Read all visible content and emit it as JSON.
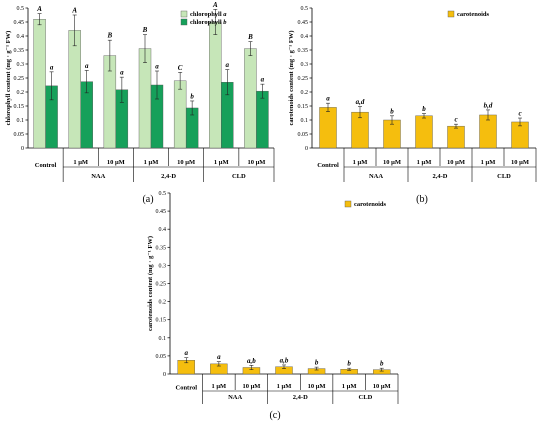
{
  "chart_data": [
    {
      "id": "a",
      "type": "bar",
      "panel_label": "(a)",
      "ylabel": "chlorophyll content (mg · g⁻¹ FW)",
      "ylim": [
        0,
        0.5
      ],
      "yticks": [
        "0",
        "0.05",
        "0.1",
        "0.15",
        "0.2",
        "0.25",
        "0.3",
        "0.35",
        "0.4",
        "0.45",
        "0.5"
      ],
      "legend_position": "top-right",
      "categories": [
        "Control",
        "1 μM",
        "10 μM",
        "1 μM",
        "10 μM",
        "1 μM",
        "10 μM"
      ],
      "groups": [
        {
          "label": "Control",
          "span": [
            0,
            0
          ]
        },
        {
          "label": "NAA",
          "span": [
            1,
            2
          ]
        },
        {
          "label": "2,4-D",
          "span": [
            3,
            4
          ]
        },
        {
          "label": "CLD",
          "span": [
            5,
            6
          ]
        }
      ],
      "series": [
        {
          "name": "chlorophyll a",
          "color": "#c6e6b8",
          "values": [
            0.46,
            0.42,
            0.33,
            0.355,
            0.24,
            0.45,
            0.355
          ],
          "errors": [
            0.02,
            0.055,
            0.055,
            0.05,
            0.03,
            0.045,
            0.025
          ],
          "letters": [
            "A",
            "A",
            "B",
            "B",
            "C",
            "A",
            "B"
          ]
        },
        {
          "name": "chlorophyll b",
          "color": "#16a05a",
          "values": [
            0.222,
            0.237,
            0.208,
            0.225,
            0.143,
            0.235,
            0.203
          ],
          "errors": [
            0.05,
            0.04,
            0.045,
            0.05,
            0.025,
            0.045,
            0.025
          ],
          "letters": [
            "a",
            "a",
            "a",
            "a",
            "b",
            "a",
            "a"
          ]
        }
      ]
    },
    {
      "id": "b",
      "type": "bar",
      "panel_label": "(b)",
      "ylabel": "carotenoids content (mg · g⁻¹ FW)",
      "ylim": [
        0,
        0.5
      ],
      "yticks": [
        "0",
        "0.05",
        "0.1",
        "0.15",
        "0.2",
        "0.25",
        "0.3",
        "0.35",
        "0.4",
        "0.45",
        "0.5"
      ],
      "legend_position": "top-right",
      "categories": [
        "Control",
        "1 μM",
        "10 μM",
        "1 μM",
        "10 μM",
        "1 μM",
        "10 μM"
      ],
      "groups": [
        {
          "label": "Control",
          "span": [
            0,
            0
          ]
        },
        {
          "label": "NAA",
          "span": [
            1,
            2
          ]
        },
        {
          "label": "2,4-D",
          "span": [
            3,
            4
          ]
        },
        {
          "label": "CLD",
          "span": [
            5,
            6
          ]
        }
      ],
      "series": [
        {
          "name": "carotenoids",
          "color": "#f5be0e",
          "values": [
            0.145,
            0.128,
            0.1,
            0.115,
            0.078,
            0.118,
            0.093
          ],
          "errors": [
            0.015,
            0.02,
            0.015,
            0.008,
            0.007,
            0.018,
            0.014
          ],
          "letters": [
            "a",
            "a,d",
            "b",
            "b",
            "c",
            "b,d",
            "c"
          ]
        }
      ]
    },
    {
      "id": "c",
      "type": "bar",
      "panel_label": "(c)",
      "ylabel": "carotenoids content (mg · g⁻¹ FW)",
      "ylim": [
        0,
        0.5
      ],
      "yticks": [
        "0",
        "0.05",
        "0.1",
        "0.15",
        "0.2",
        "0.25",
        "0.3",
        "0.35",
        "0.4",
        "0.45",
        "0.5"
      ],
      "legend_position": "top-right",
      "categories": [
        "Control",
        "1 μM",
        "10 μM",
        "1 μM",
        "10 μM",
        "1 μM",
        "10 μM"
      ],
      "groups": [
        {
          "label": "Control",
          "span": [
            0,
            0
          ]
        },
        {
          "label": "NAA",
          "span": [
            1,
            2
          ]
        },
        {
          "label": "2,4-D",
          "span": [
            3,
            4
          ]
        },
        {
          "label": "CLD",
          "span": [
            5,
            6
          ]
        }
      ],
      "series": [
        {
          "name": "carotenoids",
          "color": "#f5be0e",
          "values": [
            0.038,
            0.028,
            0.018,
            0.02,
            0.015,
            0.013,
            0.012
          ],
          "errors": [
            0.007,
            0.006,
            0.006,
            0.005,
            0.004,
            0.003,
            0.004
          ],
          "letters": [
            "a",
            "a",
            "a,b",
            "a,b",
            "b",
            "b",
            "b"
          ]
        }
      ]
    }
  ]
}
